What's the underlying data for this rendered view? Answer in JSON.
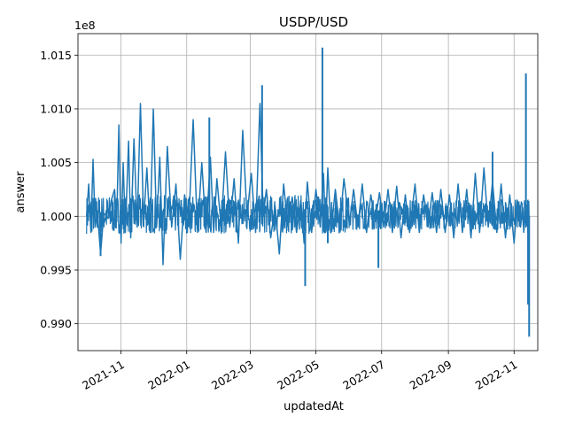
{
  "chart_data": {
    "type": "line",
    "title": "USDP/USD",
    "xlabel": "updatedAt",
    "ylabel": "answer",
    "y_offset_label": "1e8",
    "y_scale_factor": 100000000,
    "grid": true,
    "xlim": [
      "2021-09-22",
      "2022-11-23"
    ],
    "ylim": [
      0.9875,
      1.017
    ],
    "x_ticks": [
      "2021-11-01",
      "2022-01-01",
      "2022-03-01",
      "2022-05-01",
      "2022-07-01",
      "2022-09-01",
      "2022-11-01"
    ],
    "x_tick_labels": [
      "2021-11",
      "2022-01",
      "2022-03",
      "2022-05",
      "2022-07",
      "2022-09",
      "2022-11"
    ],
    "y_ticks": [
      0.99,
      0.995,
      1.0,
      1.005,
      1.01,
      1.015
    ],
    "y_tick_labels": [
      "0.990",
      "0.995",
      "1.000",
      "1.005",
      "1.010",
      "1.015"
    ],
    "series": [
      {
        "color": "#1f77b4",
        "x": [
          "2021-09-30",
          "2021-10-02",
          "2021-10-04",
          "2021-10-06",
          "2021-10-08",
          "2021-10-10",
          "2021-10-13",
          "2021-10-16",
          "2021-10-20",
          "2021-10-23",
          "2021-10-26",
          "2021-10-28",
          "2021-10-30",
          "2021-11-01",
          "2021-11-03",
          "2021-11-05",
          "2021-11-08",
          "2021-11-10",
          "2021-11-13",
          "2021-11-16",
          "2021-11-19",
          "2021-11-22",
          "2021-11-25",
          "2021-11-28",
          "2021-12-01",
          "2021-12-04",
          "2021-12-07",
          "2021-12-10",
          "2021-12-14",
          "2021-12-18",
          "2021-12-22",
          "2021-12-26",
          "2021-12-30",
          "2022-01-03",
          "2022-01-07",
          "2022-01-11",
          "2022-01-15",
          "2022-01-19",
          "2022-01-23",
          "2022-01-26",
          "2022-01-29",
          "2022-02-02",
          "2022-02-06",
          "2022-02-10",
          "2022-02-14",
          "2022-02-18",
          "2022-02-22",
          "2022-02-26",
          "2022-03-02",
          "2022-03-06",
          "2022-03-10",
          "2022-03-13",
          "2022-03-16",
          "2022-03-20",
          "2022-03-24",
          "2022-03-28",
          "2022-04-01",
          "2022-04-05",
          "2022-04-09",
          "2022-04-13",
          "2022-04-17",
          "2022-04-20",
          "2022-04-23",
          "2022-04-27",
          "2022-05-01",
          "2022-05-05",
          "2022-05-08",
          "2022-05-10",
          "2022-05-12",
          "2022-05-15",
          "2022-05-19",
          "2022-05-23",
          "2022-05-27",
          "2022-06-01",
          "2022-06-05",
          "2022-06-09",
          "2022-06-13",
          "2022-06-17",
          "2022-06-21",
          "2022-06-25",
          "2022-06-29",
          "2022-07-03",
          "2022-07-07",
          "2022-07-11",
          "2022-07-15",
          "2022-07-19",
          "2022-07-23",
          "2022-07-27",
          "2022-08-01",
          "2022-08-05",
          "2022-08-09",
          "2022-08-13",
          "2022-08-17",
          "2022-08-21",
          "2022-08-25",
          "2022-08-29",
          "2022-09-02",
          "2022-09-06",
          "2022-09-10",
          "2022-09-14",
          "2022-09-18",
          "2022-09-22",
          "2022-09-26",
          "2022-09-30",
          "2022-10-04",
          "2022-10-08",
          "2022-10-12",
          "2022-10-16",
          "2022-10-20",
          "2022-10-24",
          "2022-10-28",
          "2022-11-01",
          "2022-11-04",
          "2022-11-07",
          "2022-11-09",
          "2022-11-10",
          "2022-11-11",
          "2022-11-12",
          "2022-11-13",
          "2022-11-14",
          "2022-11-15"
        ],
        "y": [
          1.0,
          1.003,
          0.9985,
          1.0053,
          0.999,
          1.0005,
          0.9965,
          1.0003,
          0.9998,
          1.0015,
          1.0025,
          0.9995,
          1.0085,
          0.9975,
          1.005,
          0.9985,
          1.007,
          0.998,
          1.0072,
          0.999,
          1.0105,
          0.9995,
          1.0045,
          0.9985,
          1.01,
          0.999,
          1.0055,
          0.9955,
          1.0065,
          0.999,
          1.003,
          0.996,
          1.002,
          0.9995,
          1.009,
          0.9985,
          1.005,
          0.9985,
          1.0055,
          0.9985,
          1.0035,
          0.999,
          1.006,
          0.999,
          1.0035,
          0.9975,
          1.008,
          1.0,
          1.004,
          0.9985,
          1.0105,
          1.0,
          1.0025,
          0.998,
          1.001,
          0.9965,
          1.003,
          0.999,
          1.0018,
          0.9985,
          1.0015,
          0.9975,
          1.0032,
          0.9985,
          1.0025,
          0.999,
          1.004,
          0.9985,
          1.0045,
          0.9985,
          1.0025,
          0.999,
          1.0035,
          0.9993,
          1.0025,
          0.999,
          1.003,
          0.9985,
          1.002,
          0.9995,
          1.0022,
          0.999,
          1.0025,
          0.9985,
          1.0028,
          0.998,
          1.002,
          0.9985,
          1.003,
          0.9985,
          1.002,
          0.999,
          1.0022,
          0.9985,
          1.0025,
          0.9985,
          1.002,
          0.998,
          1.003,
          0.9985,
          1.0025,
          0.998,
          1.004,
          0.9985,
          1.0045,
          0.999,
          1.0032,
          0.9985,
          1.003,
          0.998,
          1.002,
          0.9975,
          1.0015,
          0.999,
          1.0008,
          0.9985,
          1.0005,
          0.999,
          1.001,
          0.9985,
          1.0
        ]
      }
    ],
    "spikes": [
      {
        "x": "2021-10-13",
        "y": 0.9963
      },
      {
        "x": "2022-01-22",
        "y": 1.0092
      },
      {
        "x": "2022-03-12",
        "y": 1.0122
      },
      {
        "x": "2022-04-21",
        "y": 0.9935
      },
      {
        "x": "2022-05-07",
        "y": 1.0157
      },
      {
        "x": "2022-05-12",
        "y": 0.9975
      },
      {
        "x": "2022-06-28",
        "y": 0.9952
      },
      {
        "x": "2022-10-12",
        "y": 1.006
      },
      {
        "x": "2022-11-12",
        "y": 1.0133
      },
      {
        "x": "2022-11-14",
        "y": 0.9918
      },
      {
        "x": "2022-11-15",
        "y": 0.9888
      }
    ]
  }
}
